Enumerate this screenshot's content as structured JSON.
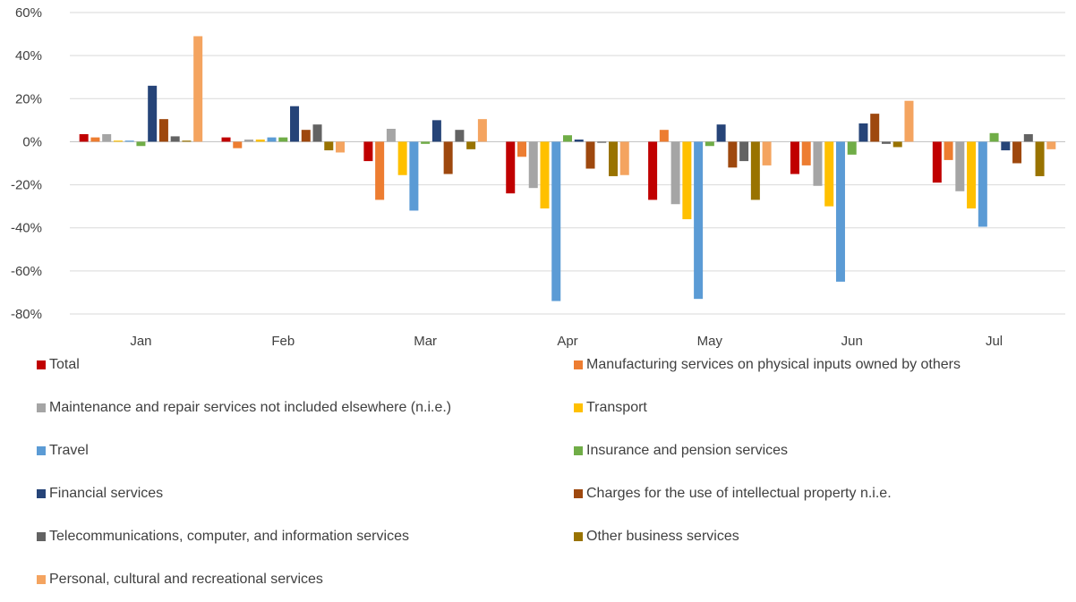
{
  "chart_data": {
    "type": "bar",
    "categories": [
      "Jan",
      "Feb",
      "Mar",
      "Apr",
      "May",
      "Jun",
      "Jul"
    ],
    "ylim": [
      -80,
      60
    ],
    "yticks": [
      60,
      40,
      20,
      0,
      -20,
      -40,
      -60,
      -80
    ],
    "ytick_labels": [
      "60%",
      "40%",
      "20%",
      "0%",
      "-20%",
      "-40%",
      "-60%",
      "-80%"
    ],
    "grid": true,
    "legend_position": "bottom",
    "series": [
      {
        "name": "Total",
        "color": "#C00000",
        "values": [
          3.5,
          2,
          -9,
          -24,
          -27,
          -15,
          -19
        ]
      },
      {
        "name": "Manufacturing services on physical inputs owned by others",
        "color": "#ED7D31",
        "values": [
          2,
          -3,
          -27,
          -7,
          5.5,
          -11,
          -8.5
        ]
      },
      {
        "name": "Maintenance and repair services not included elsewhere (n.i.e.)",
        "color": "#A5A5A5",
        "values": [
          3.5,
          1,
          6,
          -21.5,
          -29,
          -20.5,
          -23
        ]
      },
      {
        "name": "Transport",
        "color": "#FFC000",
        "values": [
          0.5,
          1,
          -15.5,
          -31,
          -36,
          -30,
          -31
        ]
      },
      {
        "name": "Travel",
        "color": "#5B9BD5",
        "values": [
          0.5,
          2,
          -32,
          -74,
          -73,
          -65,
          -39.5
        ]
      },
      {
        "name": "Insurance and pension services",
        "color": "#70AD47",
        "values": [
          -2,
          2,
          -1,
          3,
          -2,
          -6,
          4
        ]
      },
      {
        "name": "Financial services",
        "color": "#264478",
        "values": [
          26,
          16.5,
          10,
          1,
          8,
          8.5,
          -4
        ]
      },
      {
        "name": "Charges for the use of intellectual property n.i.e.",
        "color": "#9E480E",
        "values": [
          10.5,
          5.5,
          -15,
          -12.5,
          -12,
          13,
          -10
        ]
      },
      {
        "name": "Telecommunications, computer, and information services",
        "color": "#636363",
        "values": [
          2.5,
          8,
          5.5,
          -0.5,
          -9,
          -1,
          3.5
        ]
      },
      {
        "name": "Other business services",
        "color": "#997300",
        "values": [
          0.5,
          -4,
          -3.5,
          -16,
          -27,
          -2.5,
          -16
        ]
      },
      {
        "name": "Personal, cultural and recreational services",
        "color": "#F4A460",
        "values": [
          49,
          -5,
          10.5,
          -15.5,
          -11,
          19,
          -3.5
        ]
      }
    ]
  }
}
